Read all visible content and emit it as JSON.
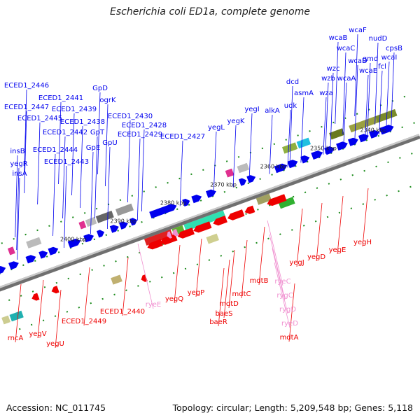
{
  "title": "Escherichia coli ED1a, complete genome",
  "footer": {
    "accession": "Accession: NC_011745",
    "summary": "Topology: circular; Length: 5,209,548 bp; Genes: 5,118"
  },
  "colors": {
    "forward_gene": "#0000ee",
    "reverse_gene": "#ee0000",
    "rna_gene": "#f090d0",
    "backbone": "#8a8a8a",
    "tick": "#1a8a1a"
  },
  "scale": [
    "2340 kbp",
    "2350 kbp",
    "2360 kbp",
    "2370 kbp",
    "2380 kbp",
    "2390 kbp",
    "2400 kbp"
  ],
  "forward_labels": [
    "wcaF",
    "nudD",
    "wcaB",
    "cpsB",
    "wcaC",
    "gmd",
    "wcaI",
    "wcaD",
    "fcl",
    "wzc",
    "wcaE",
    "wzb",
    "wcaA",
    "dcd",
    "wza",
    "asmA",
    "udk",
    "alkA",
    "yegI",
    "yegK",
    "yegL",
    "ECED1_2446",
    "GpD",
    "ECED1_2441",
    "ogrK",
    "ECED1_2447",
    "ECED1_2439",
    "ECED1_2430",
    "ECED1_2445",
    "ECED1_2438",
    "GpT",
    "ECED1_2428",
    "ECED1_2442",
    "GpE",
    "ECED1_2429",
    "GpU",
    "ECED1_2427",
    "insB",
    "ECED1_2444",
    "yegR",
    "ECED1_2443",
    "insA"
  ],
  "reverse_labels": [
    "yegH",
    "yegE",
    "yegD",
    "yegJ",
    "mdtA",
    "mdtB",
    "mdtC",
    "mdtD",
    "baeS",
    "baeR",
    "yegP",
    "yegQ",
    "ECED1_2440",
    "ECED1_2449",
    "yegU",
    "yegV",
    "rncA"
  ],
  "rna_labels": [
    "ryeC",
    "rygC",
    "rygD",
    "ryeD",
    "ryeE"
  ]
}
